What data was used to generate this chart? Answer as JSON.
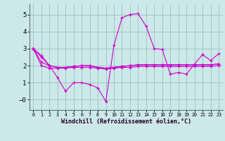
{
  "xlabel": "Windchill (Refroidissement éolien,°C)",
  "background_color": "#cde8e8",
  "grid_color": "#a0c8c8",
  "line_color": "#cc00cc",
  "ylim": [
    -0.6,
    5.6
  ],
  "xlim": [
    -0.5,
    23.5
  ],
  "yticks": [
    0,
    1,
    2,
    3,
    4,
    5
  ],
  "ytick_labels": [
    "−0",
    "1",
    "2",
    "3",
    "4",
    "5"
  ],
  "x_ticks": [
    0,
    1,
    2,
    3,
    4,
    5,
    6,
    7,
    8,
    9,
    10,
    11,
    12,
    13,
    14,
    15,
    16,
    17,
    18,
    19,
    20,
    21,
    22,
    23
  ],
  "series": [
    [
      3.0,
      2.6,
      2.0,
      1.3,
      0.5,
      1.0,
      1.0,
      0.9,
      0.7,
      -0.1,
      3.2,
      4.8,
      5.0,
      5.05,
      4.3,
      3.0,
      2.95,
      1.5,
      1.6,
      1.5,
      2.1,
      2.65,
      2.3,
      2.7
    ],
    [
      3.0,
      2.5,
      2.0,
      1.9,
      1.9,
      1.95,
      2.0,
      2.0,
      1.9,
      1.85,
      1.9,
      1.95,
      2.0,
      2.05,
      2.05,
      2.05,
      2.05,
      2.05,
      2.05,
      2.05,
      2.05,
      2.05,
      2.05,
      2.1
    ],
    [
      3.0,
      2.2,
      2.0,
      1.9,
      1.9,
      1.95,
      2.0,
      2.0,
      1.9,
      1.85,
      1.9,
      1.95,
      2.0,
      2.05,
      2.05,
      2.05,
      2.05,
      2.05,
      2.05,
      2.05,
      2.05,
      2.05,
      2.05,
      2.1
    ],
    [
      3.0,
      2.0,
      1.85,
      1.85,
      1.85,
      1.9,
      1.9,
      1.9,
      1.85,
      1.8,
      1.85,
      1.9,
      1.9,
      1.95,
      1.95,
      1.95,
      1.95,
      1.95,
      1.95,
      1.95,
      1.95,
      1.95,
      1.95,
      2.0
    ]
  ]
}
